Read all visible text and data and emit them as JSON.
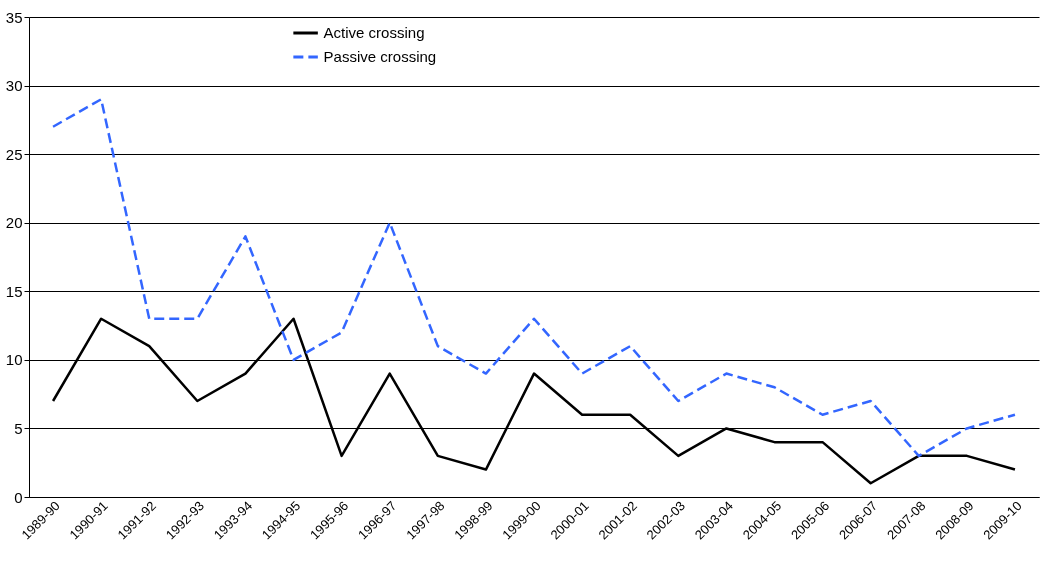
{
  "chart_data": {
    "type": "line",
    "categories": [
      "1989-90",
      "1990-91",
      "1991-92",
      "1992-93",
      "1993-94",
      "1994-95",
      "1995-96",
      "1996-97",
      "1997-98",
      "1998-99",
      "1999-00",
      "2000-01",
      "2001-02",
      "2002-03",
      "2003-04",
      "2004-05",
      "2005-06",
      "2006-07",
      "2007-08",
      "2008-09",
      "2009-10"
    ],
    "series": [
      {
        "name": "Active crossing",
        "color": "#000000",
        "line_style": "solid",
        "values": [
          7,
          13,
          11,
          7,
          9,
          13,
          3,
          9,
          3,
          2,
          9,
          6,
          6,
          3,
          5,
          4,
          4,
          1,
          3,
          3,
          2
        ]
      },
      {
        "name": "Passive crossing",
        "color": "#3366ff",
        "line_style": "dashed",
        "values": [
          27,
          29,
          13,
          13,
          19,
          10,
          12,
          20,
          11,
          9,
          13,
          9,
          11,
          7,
          9,
          8,
          6,
          7,
          3,
          5,
          6
        ]
      }
    ],
    "ylim": [
      0,
      35
    ],
    "yticks": [
      0,
      5,
      10,
      15,
      20,
      25,
      30,
      35
    ],
    "grid": "y",
    "legend": "top",
    "marker": "none"
  }
}
